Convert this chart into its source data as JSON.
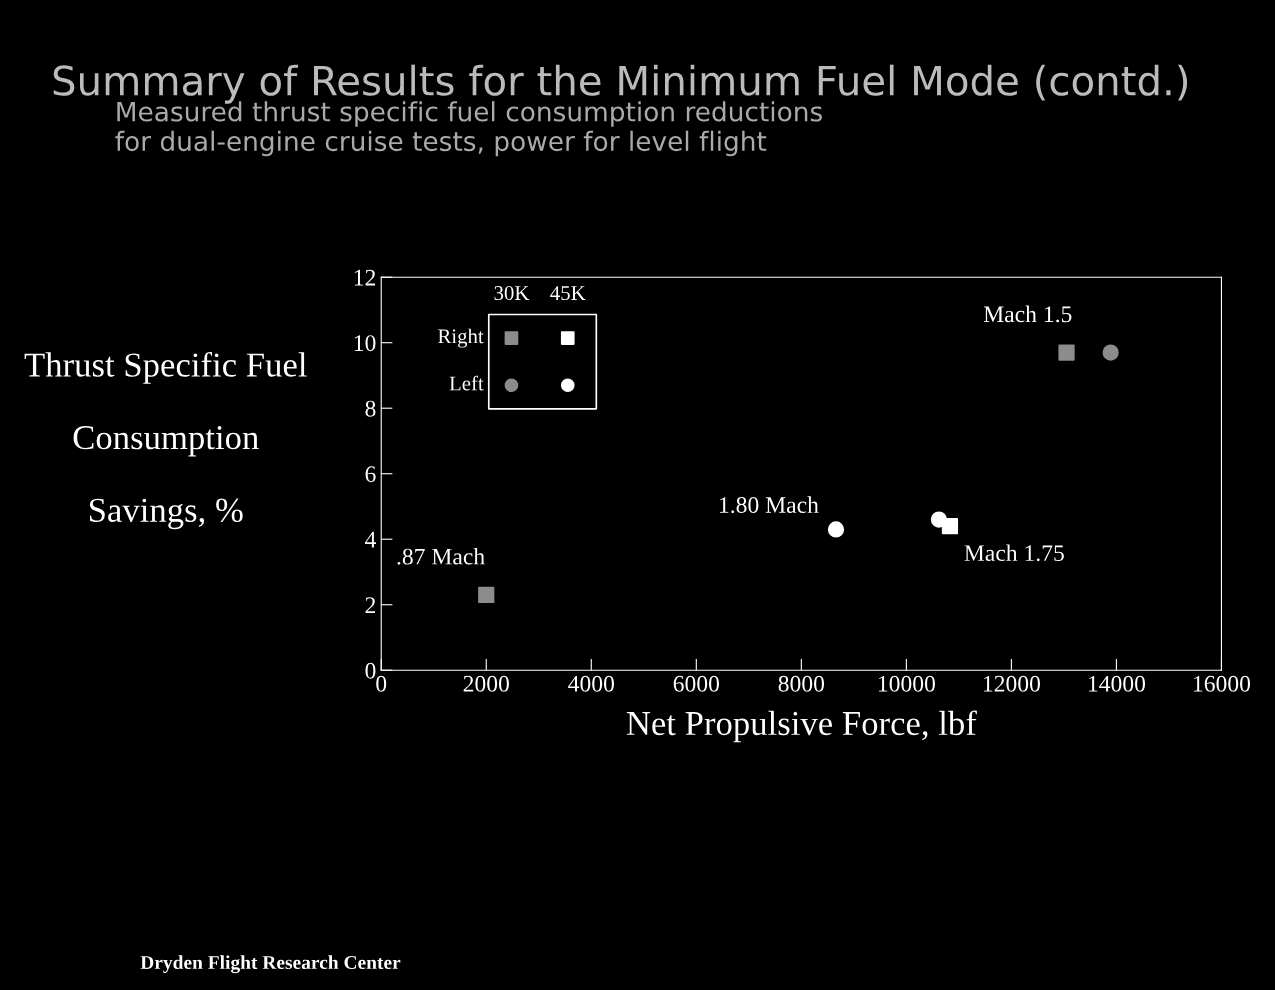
{
  "chart_data": {
    "type": "scatter",
    "title": "Summary of Results for the Minimum Fuel Mode (contd.)",
    "subtitle": "Measured thrust specific fuel consumption reductions\nfor dual-engine cruise tests, power for level flight",
    "xlabel": "Net Propulsive Force, lbf",
    "ylabel": "Thrust Specific Fuel\n\nConsumption\n\nSavings, %",
    "series": [
      {
        "color": "#8c8c8c",
        "marker": "square",
        "x": [
          2000,
          13050
        ],
        "values": [
          2.3,
          9.7
        ]
      },
      {
        "color": "#ffffff",
        "marker": "square",
        "x": [
          10830
        ],
        "values": [
          4.4
        ]
      },
      {
        "color": "#8c8c8c",
        "marker": "circle",
        "x": [
          13890
        ],
        "values": [
          9.7
        ]
      },
      {
        "color": "#ffffff",
        "marker": "circle",
        "x": [
          8660,
          10620
        ],
        "values": [
          4.3,
          4.6
        ]
      }
    ],
    "annotations": [
      {
        "text": ".87 Mach",
        "x": 2000,
        "y": 2.3
      },
      {
        "text": "1.80 Mach",
        "x": 8660,
        "y": 4.3
      },
      {
        "text": "Mach 1.75",
        "x": 10830,
        "y": 4.4
      },
      {
        "text": "Mach 1.5",
        "x": 13050,
        "y": 9.7
      },
      "30K",
      "45K",
      "Right",
      "Left",
      "Dryden Flight Research Center"
    ],
    "xlim": [
      0,
      16000
    ],
    "xticks": [
      0,
      2000,
      4000,
      6000,
      8000,
      10000,
      12000,
      14000,
      16000
    ],
    "ylim": [
      0,
      12
    ],
    "yticks": [
      0,
      2,
      4,
      6,
      8,
      10,
      12
    ],
    "grid": false
  }
}
